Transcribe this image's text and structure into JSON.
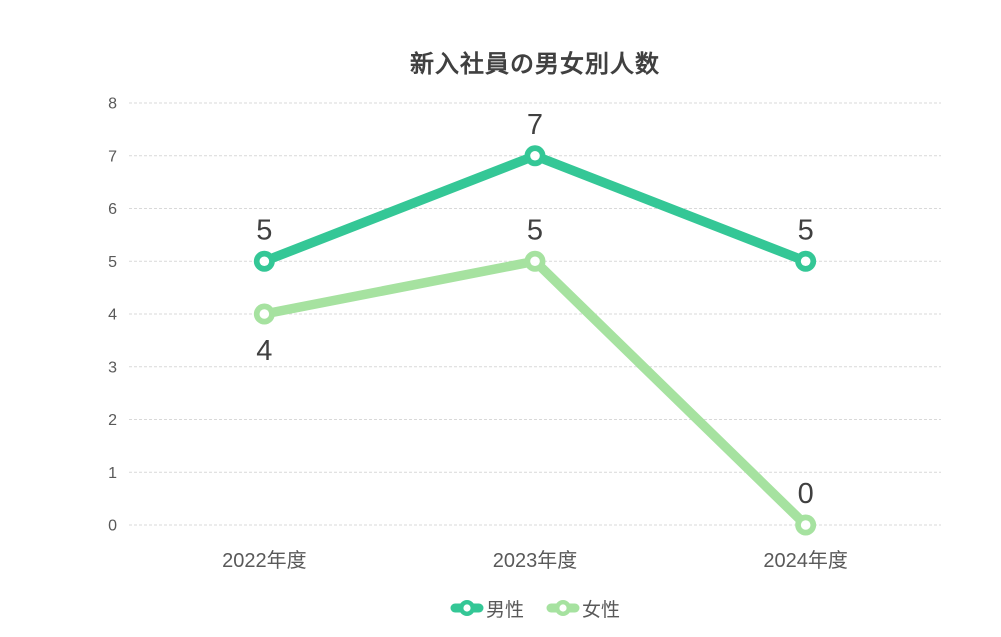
{
  "title": "新入社員の男女別人数",
  "chart_data": {
    "type": "line",
    "categories": [
      "2022年度",
      "2023年度",
      "2024年度"
    ],
    "series": [
      {
        "name": "男性",
        "values": [
          5,
          7,
          5
        ],
        "color": "#34c796",
        "label_placements": [
          "above",
          "above",
          "above"
        ]
      },
      {
        "name": "女性",
        "values": [
          4,
          5,
          0
        ],
        "color": "#a6e2a0",
        "label_placements": [
          "below",
          "above",
          "above"
        ]
      }
    ],
    "ylim": [
      0,
      8
    ],
    "yticks": [
      0,
      1,
      2,
      3,
      4,
      5,
      6,
      7,
      8
    ],
    "grid": true,
    "legend_position": "bottom",
    "colors": {
      "title_text": "#404040",
      "axis_text": "#595959",
      "data_label_text": "#404040",
      "gridline": "#d9d9d9",
      "marker_center": "#ffffff"
    }
  }
}
